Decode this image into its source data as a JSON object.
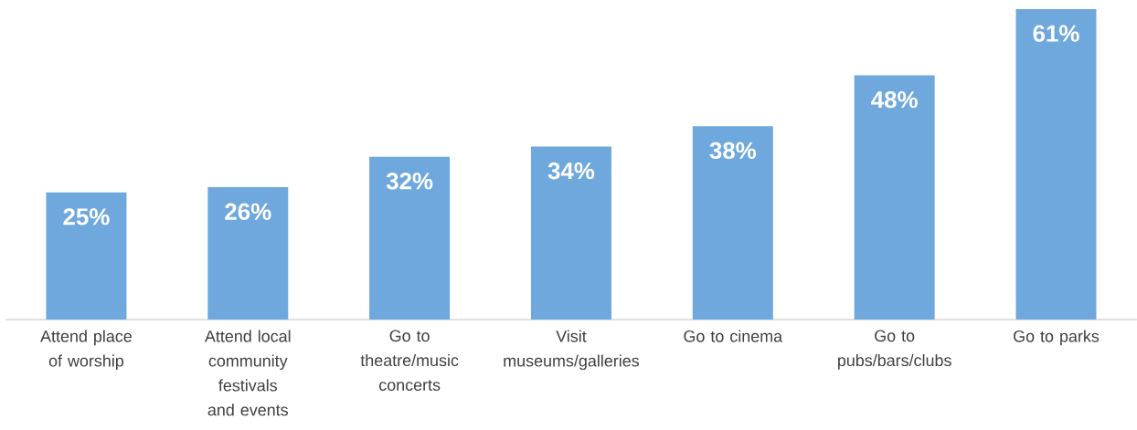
{
  "chart_data": {
    "type": "bar",
    "categories": [
      "Attend place of worship",
      "Attend local community festivals and events",
      "Go to theatre/music concerts",
      "Visit museums/galleries",
      "Go to cinema",
      "Go to pubs/bars/clubs",
      "Go to parks"
    ],
    "values": [
      25,
      26,
      32,
      34,
      38,
      48,
      61
    ],
    "value_labels": [
      "25%",
      "26%",
      "32%",
      "34%",
      "38%",
      "48%",
      "61%"
    ],
    "color": "#6fa8dc"
  }
}
